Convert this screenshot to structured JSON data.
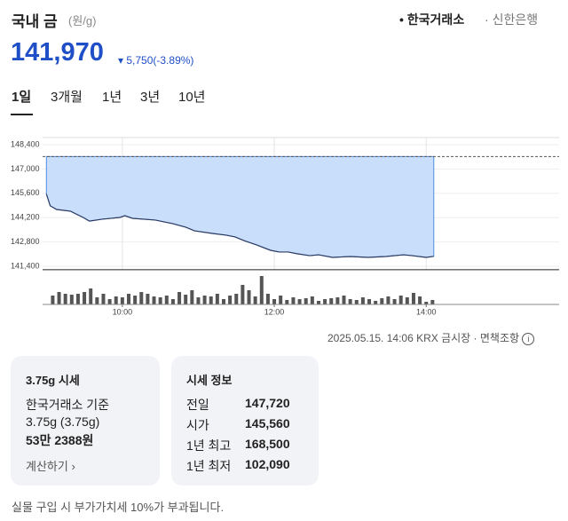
{
  "header": {
    "title": "국내 금",
    "unit": "(원/g)",
    "sources": [
      "한국거래소",
      "신한은행"
    ]
  },
  "quote": {
    "price": "141,970",
    "change": "5,750",
    "change_pct": "(-3.89%)"
  },
  "tabs": [
    "1일",
    "3개월",
    "1년",
    "3년",
    "10년"
  ],
  "chart_data": {
    "type": "area",
    "x": [
      540,
      543,
      548,
      559,
      569,
      574,
      584,
      598,
      602,
      608,
      626,
      640,
      650,
      657,
      671,
      682,
      689,
      696,
      706,
      717,
      724,
      731,
      738,
      748,
      755,
      766,
      780,
      794,
      808,
      822,
      829,
      840,
      846
    ],
    "values": [
      145560,
      144880,
      144670,
      144570,
      144210,
      144000,
      144110,
      144210,
      144310,
      144160,
      144060,
      143850,
      143650,
      143440,
      143290,
      143190,
      143090,
      142880,
      142630,
      142320,
      142220,
      142220,
      142120,
      142010,
      142060,
      141910,
      141960,
      141910,
      141960,
      142060,
      142010,
      141910,
      141970
    ],
    "color": "#2d3b63",
    "fill": "#c9defa",
    "baseline": 147720,
    "xlim": [
      537,
      945
    ],
    "xticks": [
      {
        "value": 600,
        "label": "10:00"
      },
      {
        "value": 720,
        "label": "12:00"
      },
      {
        "value": 840,
        "label": "14:00"
      }
    ],
    "ylim": [
      141200,
      148600
    ],
    "yticks": [
      {
        "value": 141400,
        "label": "141,400"
      },
      {
        "value": 142800,
        "label": "142,800"
      },
      {
        "value": 144200,
        "label": "144,200"
      },
      {
        "value": 145600,
        "label": "145,600"
      },
      {
        "value": 147000,
        "label": "147,000"
      },
      {
        "value": 148400,
        "label": "148,400"
      }
    ],
    "grid": true,
    "volume": {
      "axis": "y2",
      "color": "#555555",
      "x": [
        545,
        550,
        555,
        560,
        565,
        570,
        575,
        580,
        585,
        590,
        595,
        600,
        605,
        610,
        615,
        620,
        625,
        630,
        635,
        640,
        645,
        650,
        655,
        660,
        665,
        670,
        675,
        680,
        685,
        690,
        695,
        700,
        705,
        710,
        715,
        720,
        725,
        730,
        735,
        740,
        745,
        750,
        755,
        760,
        765,
        770,
        775,
        780,
        785,
        790,
        795,
        800,
        805,
        810,
        815,
        820,
        825,
        830,
        835,
        840,
        845
      ],
      "values": [
        10,
        14,
        12,
        11,
        12,
        14,
        18,
        8,
        12,
        6,
        9,
        8,
        12,
        10,
        14,
        12,
        9,
        8,
        10,
        6,
        14,
        11,
        16,
        8,
        10,
        9,
        12,
        6,
        10,
        12,
        22,
        16,
        9,
        32,
        12,
        6,
        10,
        5,
        8,
        6,
        7,
        9,
        4,
        6,
        7,
        8,
        10,
        6,
        5,
        8,
        6,
        4,
        7,
        9,
        6,
        10,
        8,
        13,
        9,
        3,
        5
      ]
    },
    "y2lim": [
      0,
      34
    ]
  },
  "timestamp": "2025.05.15. 14:06 KRX 금시장",
  "disclaimer": "면책조항",
  "card_gram": {
    "title": "3.75g 시세",
    "lines": [
      "한국거래소 기준",
      "3.75g (3.75g)"
    ],
    "amount": "53만 2388원",
    "link": "계산하기"
  },
  "card_info": {
    "title": "시세 정보",
    "rows": [
      [
        "전일",
        "147,720"
      ],
      [
        "시가",
        "145,560"
      ],
      [
        "1년 최고",
        "168,500"
      ],
      [
        "1년 최저",
        "102,090"
      ]
    ]
  },
  "footnote": "실물 구입 시 부가가치세 10%가 부과됩니다."
}
